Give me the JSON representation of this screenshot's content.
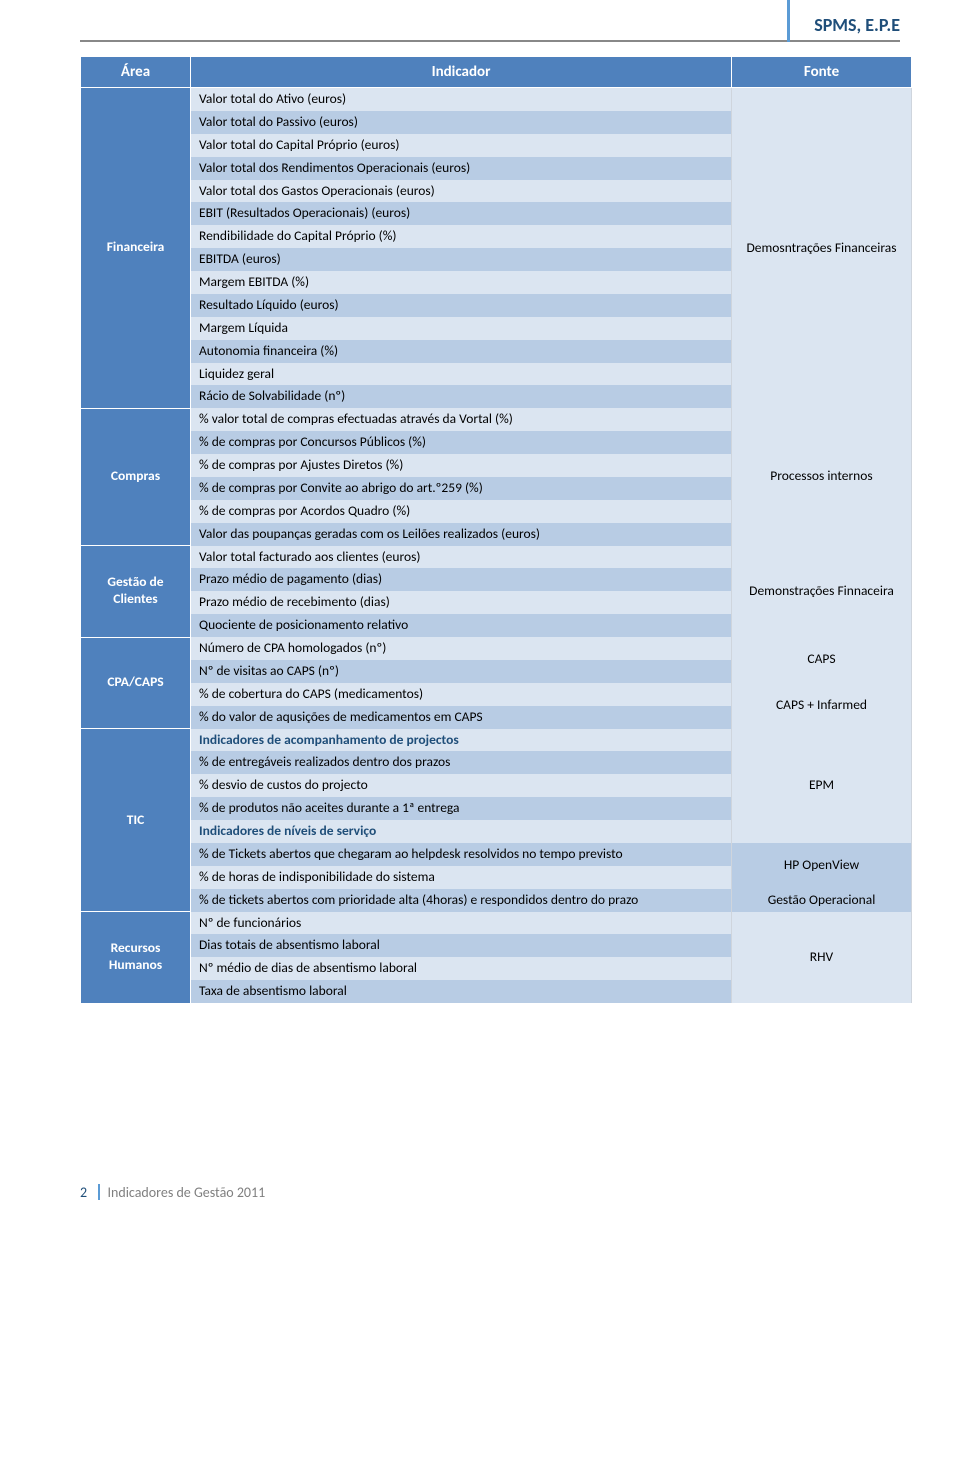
{
  "header": {
    "org": "SPMS, E.P.E"
  },
  "table": {
    "columns": {
      "area": "Área",
      "indicador": "Indicador",
      "fonte": "Fonte"
    },
    "groups": [
      {
        "area": "Financeira",
        "fontes": [
          {
            "label": "Demosntrações Financeiras",
            "span": 15
          }
        ],
        "rows": [
          {
            "text": "Valor total do Ativo (euros)",
            "shade": "light"
          },
          {
            "text": "Valor total do Passivo (euros)",
            "shade": "dark"
          },
          {
            "text": "Valor total do Capital Próprio (euros)",
            "shade": "light"
          },
          {
            "text": "Valor total dos Rendimentos Operacionais (euros)",
            "shade": "dark"
          },
          {
            "text": "Valor total dos Gastos Operacionais (euros)",
            "shade": "light"
          },
          {
            "text": "EBIT (Resultados Operacionais) (euros)",
            "shade": "dark"
          },
          {
            "text": "Rendibilidade do Capital Próprio (%)",
            "shade": "light"
          },
          {
            "text": "EBITDA (euros)",
            "shade": "dark"
          },
          {
            "text": "Margem EBITDA (%)",
            "shade": "light"
          },
          {
            "text": "Resultado Líquido (euros)",
            "shade": "dark"
          },
          {
            "text": "Margem Líquida",
            "shade": "light"
          },
          {
            "text": "Autonomia financeira (%)",
            "shade": "dark"
          },
          {
            "text": "Liquidez geral",
            "shade": "light"
          },
          {
            "text": "Rácio de Solvabilidade (nº)",
            "shade": "dark"
          }
        ]
      },
      {
        "area": "Compras",
        "fontes": [
          {
            "label": "Processos internos",
            "span": 7
          }
        ],
        "rows": [
          {
            "text": "% valor total de compras efectuadas  através da Vortal (%)",
            "shade": "light"
          },
          {
            "text": "% de compras por Concursos Públicos (%)",
            "shade": "dark"
          },
          {
            "text": "% de compras por Ajustes Diretos  (%)",
            "shade": "light"
          },
          {
            "text": "% de compras por Convite ao abrigo do art.º259 (%)",
            "shade": "dark"
          },
          {
            "text": "% de compras por Acordos Quadro (%)",
            "shade": "light"
          },
          {
            "text": "Valor das poupanças geradas com os Leilões realizados (euros)",
            "shade": "dark"
          }
        ]
      },
      {
        "area": "Gestão de Clientes",
        "fontes": [
          {
            "label": "Demonstrações Finnaceira",
            "span": 4
          }
        ],
        "rows": [
          {
            "text": "Valor total facturado aos clientes (euros)",
            "shade": "light"
          },
          {
            "text": "Prazo médio de pagamento (dias)",
            "shade": "dark"
          },
          {
            "text": "Prazo médio de recebimento (dias)",
            "shade": "light"
          },
          {
            "text": "Quociente de posicionamento relativo",
            "shade": "dark"
          }
        ]
      },
      {
        "area": "CPA/CAPS",
        "fontes": [
          {
            "label": "CAPS",
            "span": 2
          },
          {
            "label": "CAPS + Infarmed",
            "span": 2
          }
        ],
        "rows": [
          {
            "text": "Número de CPA homologados (nº)",
            "shade": "light"
          },
          {
            "text": "Nº de visitas ao CAPS (nº)",
            "shade": "dark"
          },
          {
            "text": "% de cobertura do CAPS (medicamentos)",
            "shade": "light"
          },
          {
            "text": "% do valor de aqusições de medicamentos em  CAPS",
            "shade": "dark"
          }
        ]
      },
      {
        "area": "TIC",
        "fontes": [
          {
            "label": "EPM",
            "span": 5
          },
          {
            "label": "HP OpenView",
            "span": 2
          },
          {
            "label": "Gestão Operacional",
            "span": 1
          },
          {
            "label": "HP OpenView",
            "span": 1
          }
        ],
        "rows": [
          {
            "text": "Indicadores de acompanhamento de projectos",
            "shade": "light",
            "section": true
          },
          {
            "text": "% de entregáveis realizados dentro dos prazos",
            "shade": "dark"
          },
          {
            "text": "% desvio de custos do projecto",
            "shade": "light"
          },
          {
            "text": "% de produtos não aceites durante a 1ª entrega",
            "shade": "dark"
          },
          {
            "text": "Indicadores de níveis de serviço",
            "shade": "light",
            "section": true
          },
          {
            "text": "% de Tickets abertos que chegaram ao helpdesk resolvidos no tempo previsto",
            "shade": "dark"
          },
          {
            "text": "% de horas de indisponibilidade do sistema",
            "shade": "light"
          },
          {
            "text": "% de tickets abertos com prioridade alta (4horas) e respondidos dentro do prazo",
            "shade": "dark"
          }
        ]
      },
      {
        "area": "Recursos Humanos",
        "fontes": [
          {
            "label": "RHV",
            "span": 4
          }
        ],
        "rows": [
          {
            "text": "Nº de funcionários",
            "shade": "light"
          },
          {
            "text": "Dias totais de absentismo laboral",
            "shade": "dark"
          },
          {
            "text": "Nº médio de dias de absentismo laboral",
            "shade": "light"
          },
          {
            "text": "Taxa de absentismo laboral",
            "shade": "dark"
          }
        ]
      }
    ]
  },
  "footer": {
    "page": "2",
    "title": "Indicadores de Gestão 2011"
  }
}
